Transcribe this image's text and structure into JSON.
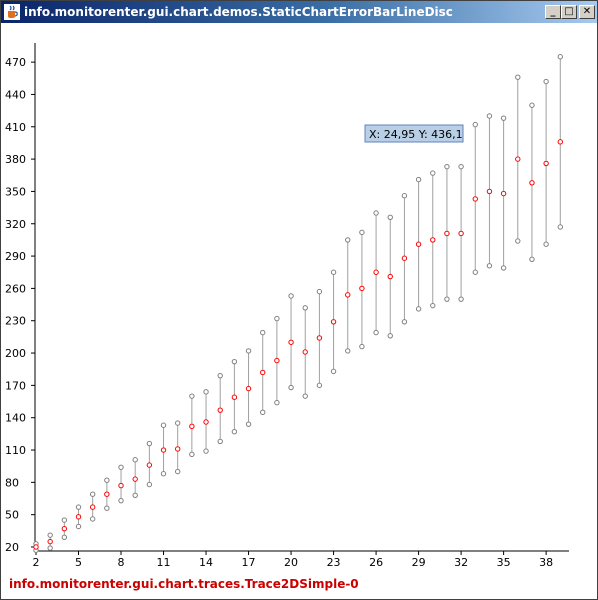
{
  "window": {
    "title": "info.monitorenter.gui.chart.demos.StaticChartErrorBarLineDisc",
    "minimize_label": "_",
    "maximize_label": "□",
    "close_label": "✕",
    "icon": "java-cup-icon"
  },
  "tooltip": {
    "text": "X: 24,95 Y: 436,1"
  },
  "legend": {
    "trace_name": "info.monitorenter.gui.chart.traces.Trace2DSimple-0"
  },
  "colors": {
    "trace": "#ff0000",
    "error_bar": "#a0a0a0",
    "axis": "#000000",
    "tooltip_bg": "#b8cfe5",
    "tooltip_border": "#6382bf"
  },
  "chart_data": {
    "type": "scatter",
    "title": "",
    "xlabel": "",
    "ylabel": "",
    "xlim": [
      2,
      39
    ],
    "ylim": [
      17,
      487
    ],
    "grid": false,
    "x_ticks": [
      2,
      5,
      8,
      11,
      14,
      17,
      20,
      23,
      26,
      29,
      32,
      35,
      38
    ],
    "y_ticks": [
      20,
      50,
      80,
      110,
      140,
      170,
      200,
      230,
      260,
      290,
      320,
      350,
      380,
      410,
      440,
      470
    ],
    "series": [
      {
        "name": "info.monitorenter.gui.chart.traces.Trace2DSimple-0",
        "points": [
          {
            "x": 2,
            "y": 20,
            "lo": 17,
            "hi": 23
          },
          {
            "x": 3,
            "y": 25,
            "lo": 19,
            "hi": 31
          },
          {
            "x": 4,
            "y": 37,
            "lo": 29,
            "hi": 45
          },
          {
            "x": 5,
            "y": 48,
            "lo": 39,
            "hi": 57
          },
          {
            "x": 6,
            "y": 57,
            "lo": 46,
            "hi": 69
          },
          {
            "x": 7,
            "y": 69,
            "lo": 56,
            "hi": 82
          },
          {
            "x": 8,
            "y": 77,
            "lo": 63,
            "hi": 94
          },
          {
            "x": 9,
            "y": 83,
            "lo": 68,
            "hi": 101
          },
          {
            "x": 10,
            "y": 96,
            "lo": 78,
            "hi": 116
          },
          {
            "x": 11,
            "y": 110,
            "lo": 88,
            "hi": 133
          },
          {
            "x": 12,
            "y": 111,
            "lo": 90,
            "hi": 135
          },
          {
            "x": 13,
            "y": 132,
            "lo": 106,
            "hi": 160
          },
          {
            "x": 14,
            "y": 136,
            "lo": 109,
            "hi": 164
          },
          {
            "x": 15,
            "y": 147,
            "lo": 118,
            "hi": 179
          },
          {
            "x": 16,
            "y": 159,
            "lo": 127,
            "hi": 192
          },
          {
            "x": 17,
            "y": 167,
            "lo": 134,
            "hi": 202
          },
          {
            "x": 18,
            "y": 182,
            "lo": 145,
            "hi": 219
          },
          {
            "x": 19,
            "y": 193,
            "lo": 154,
            "hi": 232
          },
          {
            "x": 20,
            "y": 210,
            "lo": 168,
            "hi": 253
          },
          {
            "x": 21,
            "y": 201,
            "lo": 160,
            "hi": 242
          },
          {
            "x": 22,
            "y": 214,
            "lo": 170,
            "hi": 257
          },
          {
            "x": 23,
            "y": 229,
            "lo": 183,
            "hi": 275
          },
          {
            "x": 24,
            "y": 254,
            "lo": 202,
            "hi": 305
          },
          {
            "x": 25,
            "y": 260,
            "lo": 206,
            "hi": 312
          },
          {
            "x": 26,
            "y": 275,
            "lo": 219,
            "hi": 330
          },
          {
            "x": 27,
            "y": 271,
            "lo": 216,
            "hi": 326
          },
          {
            "x": 28,
            "y": 288,
            "lo": 229,
            "hi": 346
          },
          {
            "x": 29,
            "y": 301,
            "lo": 241,
            "hi": 361
          },
          {
            "x": 30,
            "y": 305,
            "lo": 244,
            "hi": 367
          },
          {
            "x": 31,
            "y": 311,
            "lo": 250,
            "hi": 373
          },
          {
            "x": 32,
            "y": 311,
            "lo": 250,
            "hi": 373
          },
          {
            "x": 33,
            "y": 343,
            "lo": 275,
            "hi": 412
          },
          {
            "x": 34,
            "y": 350,
            "lo": 281,
            "hi": 420
          },
          {
            "x": 35,
            "y": 348,
            "lo": 279,
            "hi": 418
          },
          {
            "x": 36,
            "y": 380,
            "lo": 304,
            "hi": 456
          },
          {
            "x": 37,
            "y": 358,
            "lo": 287,
            "hi": 430
          },
          {
            "x": 38,
            "y": 376,
            "lo": 301,
            "hi": 452
          },
          {
            "x": 39,
            "y": 396,
            "lo": 317,
            "hi": 475
          }
        ]
      }
    ]
  }
}
